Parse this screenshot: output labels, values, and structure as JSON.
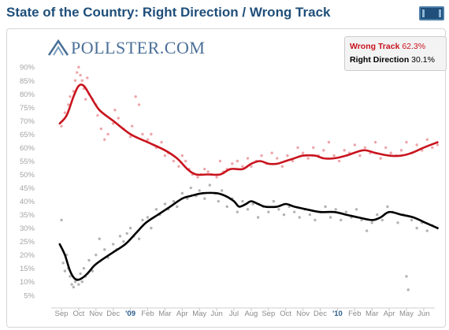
{
  "title": "State of the Country: Right Direction / Wrong Track",
  "logo_text": "POLLSTER.COM",
  "legend": [
    {
      "label": "Wrong Track",
      "value": "62.3%",
      "color": "#c8141e"
    },
    {
      "label": "Right Direction",
      "value": "30.1%",
      "color": "#000000"
    }
  ],
  "chart_data": {
    "type": "line",
    "y_ticks": [
      "90%",
      "85%",
      "80%",
      "75%",
      "70%",
      "65%",
      "60%",
      "55%",
      "50%",
      "45%",
      "40%",
      "35%",
      "30%",
      "25%",
      "20%",
      "15%",
      "10%",
      "5%"
    ],
    "ylim": [
      2,
      93
    ],
    "xlim": [
      0,
      22.3
    ],
    "x_ticks": [
      {
        "label": "Sep",
        "x": 0,
        "year": false
      },
      {
        "label": "Oct",
        "x": 1,
        "year": false
      },
      {
        "label": "Nov",
        "x": 2,
        "year": false
      },
      {
        "label": "Dec",
        "x": 3,
        "year": false
      },
      {
        "label": "'09",
        "x": 4,
        "year": true
      },
      {
        "label": "Feb",
        "x": 5,
        "year": false
      },
      {
        "label": "Mar",
        "x": 6,
        "year": false
      },
      {
        "label": "Apr",
        "x": 7,
        "year": false
      },
      {
        "label": "May",
        "x": 8,
        "year": false
      },
      {
        "label": "Jun",
        "x": 9,
        "year": false
      },
      {
        "label": "Jul",
        "x": 10,
        "year": false
      },
      {
        "label": "Aug",
        "x": 11,
        "year": false
      },
      {
        "label": "Sep",
        "x": 12,
        "year": false
      },
      {
        "label": "Oct",
        "x": 13,
        "year": false
      },
      {
        "label": "Nov",
        "x": 14,
        "year": false
      },
      {
        "label": "Dec",
        "x": 15,
        "year": false
      },
      {
        "label": "'10",
        "x": 16,
        "year": true
      },
      {
        "label": "Feb",
        "x": 17,
        "year": false
      },
      {
        "label": "Mar",
        "x": 18,
        "year": false
      },
      {
        "label": "Apr",
        "x": 19,
        "year": false
      },
      {
        "label": "May",
        "x": 20,
        "year": false
      },
      {
        "label": "Jun",
        "x": 21,
        "year": false
      }
    ],
    "series": [
      {
        "name": "Wrong Track",
        "color": "#c8141e",
        "dot_color": "#e8888e",
        "trend": [
          [
            -0.1,
            69
          ],
          [
            0.3,
            72
          ],
          [
            0.7,
            79
          ],
          [
            1.0,
            83
          ],
          [
            1.3,
            83
          ],
          [
            1.7,
            79
          ],
          [
            2.2,
            74
          ],
          [
            3.0,
            70
          ],
          [
            4.0,
            65
          ],
          [
            5.0,
            62
          ],
          [
            6.0,
            59
          ],
          [
            6.7,
            56
          ],
          [
            7.3,
            52
          ],
          [
            7.8,
            50
          ],
          [
            8.5,
            50
          ],
          [
            9.2,
            50
          ],
          [
            9.8,
            52
          ],
          [
            10.5,
            52
          ],
          [
            11.0,
            54
          ],
          [
            11.5,
            55
          ],
          [
            12.0,
            54
          ],
          [
            12.5,
            54
          ],
          [
            13.0,
            55
          ],
          [
            13.5,
            56
          ],
          [
            14.0,
            57
          ],
          [
            14.7,
            57
          ],
          [
            15.2,
            56
          ],
          [
            15.8,
            56
          ],
          [
            16.5,
            57
          ],
          [
            17.5,
            59
          ],
          [
            18.2,
            58
          ],
          [
            19.0,
            57
          ],
          [
            19.7,
            57
          ],
          [
            20.3,
            58
          ],
          [
            21.0,
            60
          ],
          [
            21.8,
            62
          ]
        ],
        "points": [
          [
            0.0,
            68
          ],
          [
            0.2,
            73
          ],
          [
            0.4,
            76
          ],
          [
            0.5,
            79
          ],
          [
            0.7,
            81
          ],
          [
            0.8,
            85
          ],
          [
            0.9,
            88
          ],
          [
            1.0,
            90
          ],
          [
            1.1,
            87
          ],
          [
            1.2,
            85
          ],
          [
            1.3,
            82
          ],
          [
            1.4,
            78
          ],
          [
            1.5,
            86
          ],
          [
            1.6,
            80
          ],
          [
            1.8,
            78
          ],
          [
            2.0,
            76
          ],
          [
            2.1,
            72
          ],
          [
            2.3,
            67
          ],
          [
            2.5,
            63
          ],
          [
            2.7,
            65
          ],
          [
            3.0,
            69
          ],
          [
            3.1,
            74
          ],
          [
            3.3,
            71
          ],
          [
            3.6,
            67
          ],
          [
            4.0,
            64
          ],
          [
            4.1,
            68
          ],
          [
            4.3,
            79
          ],
          [
            4.5,
            76
          ],
          [
            4.7,
            65
          ],
          [
            5.0,
            63
          ],
          [
            5.2,
            65
          ],
          [
            5.5,
            60
          ],
          [
            5.8,
            62
          ],
          [
            6.0,
            57
          ],
          [
            6.2,
            58
          ],
          [
            6.5,
            55
          ],
          [
            6.8,
            53
          ],
          [
            7.0,
            57
          ],
          [
            7.2,
            55
          ],
          [
            7.4,
            52
          ],
          [
            7.6,
            50
          ],
          [
            7.9,
            49
          ],
          [
            8.1,
            50
          ],
          [
            8.3,
            52
          ],
          [
            8.5,
            51
          ],
          [
            8.7,
            50
          ],
          [
            9.0,
            49
          ],
          [
            9.2,
            55
          ],
          [
            9.4,
            51
          ],
          [
            9.6,
            52
          ],
          [
            9.9,
            54
          ],
          [
            10.2,
            55
          ],
          [
            10.5,
            53
          ],
          [
            10.8,
            56
          ],
          [
            11.0,
            53
          ],
          [
            11.3,
            55
          ],
          [
            11.6,
            57
          ],
          [
            11.9,
            54
          ],
          [
            12.2,
            58
          ],
          [
            12.5,
            56
          ],
          [
            12.8,
            53
          ],
          [
            13.1,
            57
          ],
          [
            13.4,
            55
          ],
          [
            13.7,
            60
          ],
          [
            14.0,
            58
          ],
          [
            14.3,
            56
          ],
          [
            14.6,
            60
          ],
          [
            14.9,
            57
          ],
          [
            15.2,
            59
          ],
          [
            15.5,
            62
          ],
          [
            15.8,
            57
          ],
          [
            16.1,
            55
          ],
          [
            16.4,
            59
          ],
          [
            16.7,
            58
          ],
          [
            17.0,
            61
          ],
          [
            17.3,
            57
          ],
          [
            17.6,
            60
          ],
          [
            17.9,
            58
          ],
          [
            18.2,
            62
          ],
          [
            18.5,
            56
          ],
          [
            18.8,
            60
          ],
          [
            19.1,
            58
          ],
          [
            19.4,
            57
          ],
          [
            19.7,
            59
          ],
          [
            20.0,
            62
          ],
          [
            20.3,
            58
          ],
          [
            20.6,
            61
          ],
          [
            20.9,
            59
          ],
          [
            21.2,
            63
          ],
          [
            21.5,
            60
          ],
          [
            21.8,
            61
          ]
        ]
      },
      {
        "name": "Right Direction",
        "color": "#000000",
        "dot_color": "#9a9a9a",
        "trend": [
          [
            -0.1,
            24
          ],
          [
            0.2,
            20
          ],
          [
            0.5,
            14
          ],
          [
            0.8,
            11
          ],
          [
            1.1,
            11
          ],
          [
            1.5,
            13
          ],
          [
            1.9,
            16
          ],
          [
            2.3,
            18
          ],
          [
            3.0,
            21
          ],
          [
            3.7,
            24
          ],
          [
            4.3,
            28
          ],
          [
            4.9,
            32
          ],
          [
            5.6,
            35
          ],
          [
            6.3,
            38
          ],
          [
            7.0,
            41
          ],
          [
            7.5,
            42
          ],
          [
            8.2,
            43
          ],
          [
            9.0,
            43
          ],
          [
            9.5,
            42
          ],
          [
            10.0,
            40
          ],
          [
            10.3,
            38
          ],
          [
            10.7,
            39
          ],
          [
            11.0,
            40
          ],
          [
            11.4,
            39
          ],
          [
            11.8,
            38
          ],
          [
            12.5,
            38
          ],
          [
            13.0,
            39
          ],
          [
            13.5,
            38
          ],
          [
            14.2,
            37
          ],
          [
            15.0,
            36
          ],
          [
            15.8,
            36
          ],
          [
            16.5,
            35
          ],
          [
            17.2,
            34
          ],
          [
            18.0,
            33
          ],
          [
            18.5,
            34
          ],
          [
            19.0,
            36
          ],
          [
            19.7,
            35
          ],
          [
            20.4,
            34
          ],
          [
            21.1,
            32
          ],
          [
            21.8,
            30
          ]
        ],
        "points": [
          [
            0.0,
            33
          ],
          [
            0.1,
            17
          ],
          [
            0.2,
            14
          ],
          [
            0.3,
            20
          ],
          [
            0.4,
            15
          ],
          [
            0.5,
            12
          ],
          [
            0.6,
            9
          ],
          [
            0.7,
            8
          ],
          [
            0.8,
            10
          ],
          [
            0.9,
            11
          ],
          [
            1.0,
            9
          ],
          [
            1.1,
            13
          ],
          [
            1.2,
            10
          ],
          [
            1.3,
            15
          ],
          [
            1.4,
            12
          ],
          [
            1.6,
            18
          ],
          [
            1.8,
            14
          ],
          [
            2.0,
            20
          ],
          [
            2.2,
            26
          ],
          [
            2.5,
            22
          ],
          [
            2.7,
            19
          ],
          [
            3.0,
            24
          ],
          [
            3.2,
            22
          ],
          [
            3.4,
            27
          ],
          [
            3.6,
            25
          ],
          [
            3.8,
            28
          ],
          [
            4.0,
            30
          ],
          [
            4.2,
            27
          ],
          [
            4.5,
            26
          ],
          [
            4.7,
            33
          ],
          [
            5.0,
            34
          ],
          [
            5.2,
            30
          ],
          [
            5.5,
            37
          ],
          [
            5.7,
            35
          ],
          [
            6.0,
            39
          ],
          [
            6.2,
            37
          ],
          [
            6.5,
            40
          ],
          [
            6.7,
            38
          ],
          [
            7.0,
            43
          ],
          [
            7.3,
            41
          ],
          [
            7.5,
            45
          ],
          [
            7.8,
            42
          ],
          [
            8.0,
            44
          ],
          [
            8.3,
            41
          ],
          [
            8.6,
            46
          ],
          [
            8.9,
            43
          ],
          [
            9.1,
            40
          ],
          [
            9.3,
            44
          ],
          [
            9.6,
            38
          ],
          [
            9.9,
            41
          ],
          [
            10.2,
            36
          ],
          [
            10.5,
            40
          ],
          [
            10.8,
            37
          ],
          [
            11.1,
            39
          ],
          [
            11.4,
            34
          ],
          [
            11.7,
            38
          ],
          [
            12.0,
            36
          ],
          [
            12.3,
            40
          ],
          [
            12.6,
            37
          ],
          [
            12.9,
            35
          ],
          [
            13.2,
            38
          ],
          [
            13.5,
            36
          ],
          [
            13.8,
            34
          ],
          [
            14.1,
            37
          ],
          [
            14.4,
            35
          ],
          [
            14.7,
            33
          ],
          [
            15.0,
            36
          ],
          [
            15.3,
            38
          ],
          [
            15.6,
            34
          ],
          [
            15.9,
            37
          ],
          [
            16.2,
            33
          ],
          [
            16.5,
            36
          ],
          [
            16.8,
            34
          ],
          [
            17.1,
            37
          ],
          [
            17.4,
            33
          ],
          [
            17.7,
            29
          ],
          [
            18.0,
            32
          ],
          [
            18.3,
            35
          ],
          [
            18.6,
            33
          ],
          [
            18.9,
            38
          ],
          [
            19.2,
            36
          ],
          [
            19.5,
            32
          ],
          [
            19.8,
            35
          ],
          [
            20.0,
            12
          ],
          [
            20.1,
            7
          ],
          [
            20.3,
            33
          ],
          [
            20.6,
            30
          ],
          [
            20.9,
            32
          ],
          [
            21.2,
            29
          ],
          [
            21.5,
            31
          ],
          [
            21.8,
            30
          ]
        ]
      }
    ]
  }
}
